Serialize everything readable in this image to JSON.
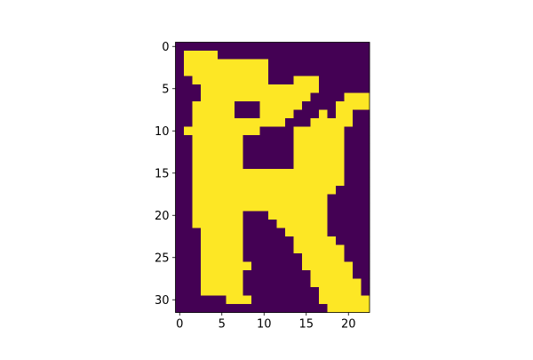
{
  "chart_data": {
    "type": "heatmap",
    "title": "",
    "xlabel": "",
    "ylabel": "",
    "colormap": "viridis",
    "colors": {
      "0": "#440154",
      "1": "#fde725"
    },
    "x_range": [
      -0.5,
      22.5
    ],
    "y_range": [
      31.5,
      -0.5
    ],
    "y_inverted": true,
    "grid": false,
    "legend": "none",
    "xticks": [
      0,
      5,
      10,
      15,
      20
    ],
    "yticks": [
      0,
      5,
      10,
      15,
      20,
      25,
      30
    ],
    "rows": 32,
    "cols": 23,
    "grid_values": [
      [
        0,
        0,
        0,
        0,
        0,
        0,
        0,
        0,
        0,
        0,
        0,
        0,
        0,
        0,
        0,
        0,
        0,
        0,
        0,
        0,
        0,
        0,
        0
      ],
      [
        0,
        1,
        1,
        1,
        1,
        0,
        0,
        0,
        0,
        0,
        0,
        0,
        0,
        0,
        0,
        0,
        0,
        0,
        0,
        0,
        0,
        0,
        0
      ],
      [
        0,
        1,
        1,
        1,
        1,
        1,
        1,
        1,
        1,
        1,
        1,
        0,
        0,
        0,
        0,
        0,
        0,
        0,
        0,
        0,
        0,
        0,
        0
      ],
      [
        0,
        1,
        1,
        1,
        1,
        1,
        1,
        1,
        1,
        1,
        1,
        0,
        0,
        0,
        0,
        0,
        0,
        0,
        0,
        0,
        0,
        0,
        0
      ],
      [
        0,
        0,
        1,
        1,
        1,
        1,
        1,
        1,
        1,
        1,
        1,
        0,
        0,
        0,
        1,
        1,
        1,
        0,
        0,
        0,
        0,
        0,
        0
      ],
      [
        0,
        0,
        0,
        1,
        1,
        1,
        1,
        1,
        1,
        1,
        1,
        1,
        1,
        1,
        1,
        1,
        1,
        0,
        0,
        0,
        0,
        0,
        0
      ],
      [
        0,
        0,
        0,
        1,
        1,
        1,
        1,
        1,
        1,
        1,
        1,
        1,
        1,
        1,
        1,
        1,
        0,
        0,
        0,
        0,
        1,
        1,
        1
      ],
      [
        0,
        0,
        1,
        1,
        1,
        1,
        1,
        0,
        0,
        0,
        1,
        1,
        1,
        1,
        1,
        0,
        0,
        0,
        0,
        1,
        1,
        1,
        1
      ],
      [
        0,
        0,
        1,
        1,
        1,
        1,
        1,
        0,
        0,
        0,
        1,
        1,
        1,
        1,
        0,
        0,
        0,
        1,
        0,
        1,
        1,
        0,
        0
      ],
      [
        0,
        0,
        1,
        1,
        1,
        1,
        1,
        1,
        1,
        1,
        1,
        1,
        1,
        0,
        0,
        0,
        1,
        1,
        1,
        1,
        1,
        0,
        0
      ],
      [
        0,
        1,
        1,
        1,
        1,
        1,
        1,
        1,
        1,
        1,
        0,
        0,
        0,
        0,
        1,
        1,
        1,
        1,
        1,
        1,
        0,
        0,
        0
      ],
      [
        0,
        0,
        1,
        1,
        1,
        1,
        1,
        1,
        0,
        0,
        0,
        0,
        0,
        0,
        1,
        1,
        1,
        1,
        1,
        1,
        0,
        0,
        0
      ],
      [
        0,
        0,
        1,
        1,
        1,
        1,
        1,
        1,
        0,
        0,
        0,
        0,
        0,
        0,
        1,
        1,
        1,
        1,
        1,
        1,
        0,
        0,
        0
      ],
      [
        0,
        0,
        1,
        1,
        1,
        1,
        1,
        1,
        0,
        0,
        0,
        0,
        0,
        0,
        1,
        1,
        1,
        1,
        1,
        1,
        0,
        0,
        0
      ],
      [
        0,
        0,
        1,
        1,
        1,
        1,
        1,
        1,
        0,
        0,
        0,
        0,
        0,
        0,
        1,
        1,
        1,
        1,
        1,
        1,
        0,
        0,
        0
      ],
      [
        0,
        0,
        1,
        1,
        1,
        1,
        1,
        1,
        1,
        1,
        1,
        1,
        1,
        1,
        1,
        1,
        1,
        1,
        1,
        1,
        0,
        0,
        0
      ],
      [
        0,
        0,
        1,
        1,
        1,
        1,
        1,
        1,
        1,
        1,
        1,
        1,
        1,
        1,
        1,
        1,
        1,
        1,
        1,
        1,
        0,
        0,
        0
      ],
      [
        0,
        0,
        1,
        1,
        1,
        1,
        1,
        1,
        1,
        1,
        1,
        1,
        1,
        1,
        1,
        1,
        1,
        1,
        1,
        0,
        0,
        0,
        0
      ],
      [
        0,
        0,
        1,
        1,
        1,
        1,
        1,
        1,
        1,
        1,
        1,
        1,
        1,
        1,
        1,
        1,
        1,
        1,
        0,
        0,
        0,
        0,
        0
      ],
      [
        0,
        0,
        1,
        1,
        1,
        1,
        1,
        1,
        1,
        1,
        1,
        1,
        1,
        1,
        1,
        1,
        1,
        1,
        0,
        0,
        0,
        0,
        0
      ],
      [
        0,
        0,
        1,
        1,
        1,
        1,
        1,
        1,
        0,
        0,
        0,
        1,
        1,
        1,
        1,
        1,
        1,
        1,
        0,
        0,
        0,
        0,
        0
      ],
      [
        0,
        0,
        1,
        1,
        1,
        1,
        1,
        1,
        0,
        0,
        0,
        0,
        1,
        1,
        1,
        1,
        1,
        1,
        0,
        0,
        0,
        0,
        0
      ],
      [
        0,
        0,
        0,
        1,
        1,
        1,
        1,
        1,
        0,
        0,
        0,
        0,
        0,
        1,
        1,
        1,
        1,
        1,
        0,
        0,
        0,
        0,
        0
      ],
      [
        0,
        0,
        0,
        1,
        1,
        1,
        1,
        1,
        0,
        0,
        0,
        0,
        0,
        0,
        1,
        1,
        1,
        1,
        1,
        0,
        0,
        0,
        0
      ],
      [
        0,
        0,
        0,
        1,
        1,
        1,
        1,
        1,
        0,
        0,
        0,
        0,
        0,
        0,
        1,
        1,
        1,
        1,
        1,
        1,
        0,
        0,
        0
      ],
      [
        0,
        0,
        0,
        1,
        1,
        1,
        1,
        1,
        0,
        0,
        0,
        0,
        0,
        0,
        0,
        1,
        1,
        1,
        1,
        1,
        0,
        0,
        0
      ],
      [
        0,
        0,
        0,
        1,
        1,
        1,
        1,
        1,
        1,
        0,
        0,
        0,
        0,
        0,
        0,
        1,
        1,
        1,
        1,
        1,
        1,
        0,
        0
      ],
      [
        0,
        0,
        0,
        1,
        1,
        1,
        1,
        1,
        0,
        0,
        0,
        0,
        0,
        0,
        0,
        0,
        1,
        1,
        1,
        1,
        1,
        0,
        0
      ],
      [
        0,
        0,
        0,
        1,
        1,
        1,
        1,
        1,
        0,
        0,
        0,
        0,
        0,
        0,
        0,
        0,
        1,
        1,
        1,
        1,
        1,
        1,
        0
      ],
      [
        0,
        0,
        0,
        1,
        1,
        1,
        1,
        1,
        0,
        0,
        0,
        0,
        0,
        0,
        0,
        0,
        0,
        1,
        1,
        1,
        1,
        1,
        0
      ],
      [
        0,
        0,
        0,
        0,
        0,
        0,
        1,
        1,
        1,
        0,
        0,
        0,
        0,
        0,
        0,
        0,
        0,
        1,
        1,
        1,
        1,
        1,
        1
      ],
      [
        0,
        0,
        0,
        0,
        0,
        0,
        0,
        0,
        0,
        0,
        0,
        0,
        0,
        0,
        0,
        0,
        0,
        0,
        1,
        1,
        1,
        1,
        1
      ]
    ]
  }
}
